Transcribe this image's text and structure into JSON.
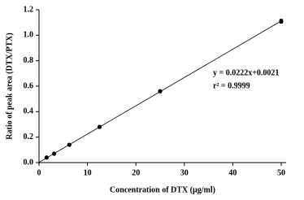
{
  "chart_data": {
    "type": "scatter",
    "x_label": "Concentration of DTX  (µg/ml)",
    "y_label": "Ratio of peak area  (DTX/PTX)",
    "series": [
      {
        "name": "DTX",
        "color": "#000000",
        "x": [
          1.5625,
          3.125,
          6.25,
          12.5,
          25,
          50
        ],
        "values": [
          0.04,
          0.07,
          0.14,
          0.28,
          0.56,
          1.11
        ],
        "errors": [
          0.004,
          0.004,
          0.005,
          0.006,
          0.008,
          0.015
        ]
      }
    ],
    "trendline": {
      "slope": 0.0222,
      "intercept": 0.0021,
      "color": "#000000"
    },
    "annotations": [
      "y  =  0.0222x+0.0021",
      "r² =  0.9999"
    ],
    "xlim": [
      0,
      50
    ],
    "xticks": [
      0,
      10,
      20,
      30,
      40,
      50
    ],
    "ylim": [
      0,
      1.2
    ],
    "yticks": [
      {
        "value": 0,
        "label": "0.0"
      },
      0.2,
      0.4,
      0.6,
      0.8,
      {
        "value": 1,
        "label": "1.0"
      },
      1.2
    ],
    "grid": false
  }
}
